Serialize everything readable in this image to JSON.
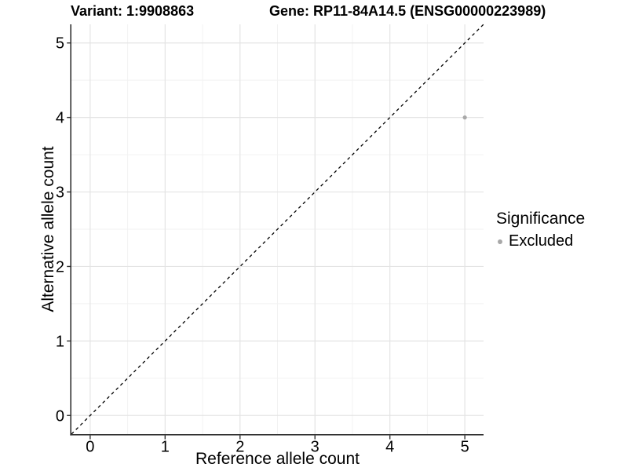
{
  "header": {
    "variant_title": "Variant: 1:9908863",
    "gene_title": "Gene: RP11-84A14.5 (ENSG00000223989)"
  },
  "chart_data": {
    "type": "scatter",
    "x": {
      "label": "Reference allele count",
      "range": [
        -0.25,
        5.25
      ],
      "ticks": [
        0,
        1,
        2,
        3,
        4,
        5
      ],
      "minor_step": 0.5
    },
    "y": {
      "label": "Alternative allele count",
      "range": [
        -0.25,
        5.25
      ],
      "ticks": [
        0,
        1,
        2,
        3,
        4,
        5
      ],
      "minor_step": 0.5
    },
    "series": [
      {
        "name": "Excluded",
        "color": "#a8a8a8",
        "points": [
          {
            "x": 5,
            "y": 4
          }
        ]
      }
    ],
    "reference_line": {
      "type": "identity",
      "style": "dashed",
      "color": "#000000",
      "from": -0.25,
      "to": 5.25
    },
    "grid": {
      "major_color": "#e4e4e4",
      "minor_color": "#f2f2f2",
      "background": "#ffffff"
    },
    "axis_color": "#333333",
    "legend": {
      "title": "Significance",
      "position": "right",
      "entries": [
        {
          "label": "Excluded",
          "color": "#a8a8a8"
        }
      ]
    }
  }
}
